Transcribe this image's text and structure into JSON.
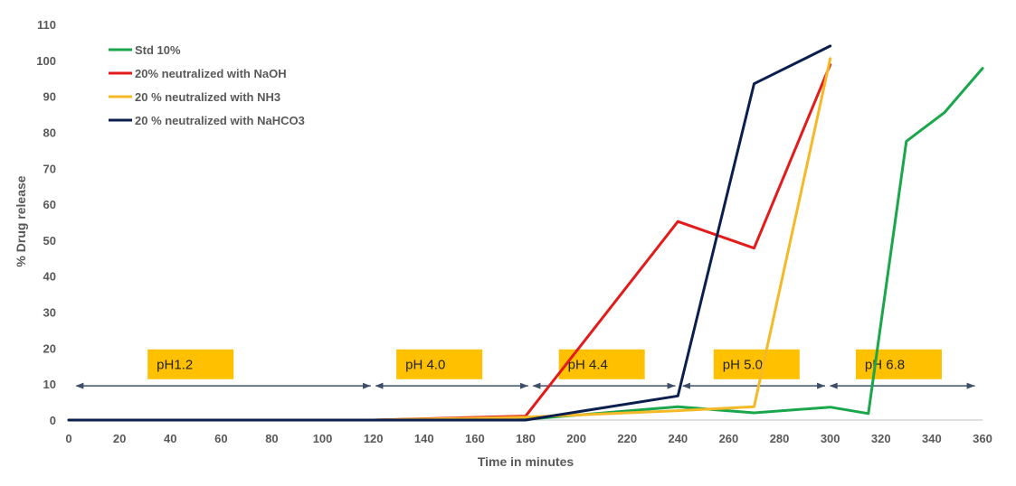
{
  "chart_data": {
    "type": "line",
    "title": "",
    "xlabel": "Time in minutes",
    "ylabel": "% Drug release",
    "xlim": [
      0,
      360
    ],
    "ylim": [
      0,
      110
    ],
    "x_ticks": [
      0,
      20,
      40,
      60,
      80,
      100,
      120,
      140,
      160,
      180,
      200,
      220,
      240,
      260,
      280,
      300,
      320,
      340,
      360
    ],
    "y_ticks": [
      0,
      10,
      20,
      30,
      40,
      50,
      60,
      70,
      80,
      90,
      100,
      110
    ],
    "grid": false,
    "legend_position": "top-left",
    "series": [
      {
        "name": "Std 10%",
        "color": "#1aa64a",
        "points": [
          [
            0,
            0
          ],
          [
            120,
            0
          ],
          [
            180,
            0.2
          ],
          [
            240,
            3.7
          ],
          [
            270,
            2.0
          ],
          [
            300,
            3.6
          ],
          [
            315,
            1.8
          ],
          [
            330,
            77.5
          ],
          [
            345,
            85.5
          ],
          [
            360,
            97.8
          ]
        ]
      },
      {
        "name": "20% neutralized with NaOH",
        "color": "#e31b1b",
        "points": [
          [
            0,
            0
          ],
          [
            120,
            0
          ],
          [
            180,
            1.1
          ],
          [
            240,
            55.2
          ],
          [
            270,
            47.8
          ],
          [
            300,
            98.8
          ]
        ]
      },
      {
        "name": "20 % neutralized with NH3",
        "color": "#f5b928",
        "points": [
          [
            0,
            0
          ],
          [
            120,
            0
          ],
          [
            180,
            0.8
          ],
          [
            240,
            2.6
          ],
          [
            270,
            3.7
          ],
          [
            300,
            100.5
          ]
        ]
      },
      {
        "name": "20 % neutralized with NaHCO3",
        "color": "#0b1f4e",
        "points": [
          [
            0,
            0
          ],
          [
            120,
            0
          ],
          [
            180,
            0
          ],
          [
            240,
            6.7
          ],
          [
            270,
            93.5
          ],
          [
            300,
            104.0
          ]
        ]
      }
    ],
    "ph_regions": [
      {
        "label": "pH1.2",
        "start": 3,
        "end": 119,
        "label_x": 48
      },
      {
        "label": "pH 4.0",
        "start": 121,
        "end": 181,
        "label_x": 146
      },
      {
        "label": "pH 4.4",
        "start": 183,
        "end": 239,
        "label_x": 210
      },
      {
        "label": "pH 5.0",
        "start": 242,
        "end": 298,
        "label_x": 271
      },
      {
        "label": "pH 6.8",
        "start": 300,
        "end": 357,
        "label_x": 327
      }
    ],
    "ph_band_value": 9.5,
    "ph_box_value": 15.5,
    "ph_box_color": "#ffc000",
    "arrow_color": "#3d4f66"
  }
}
